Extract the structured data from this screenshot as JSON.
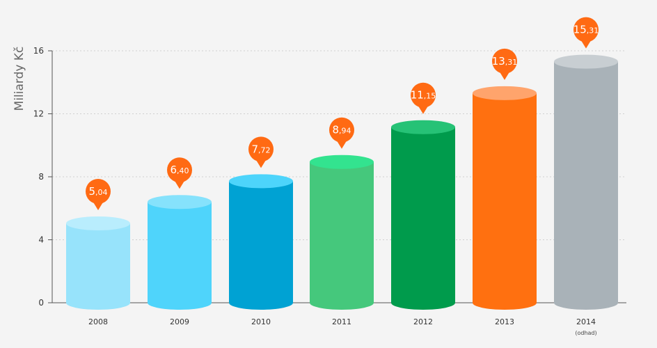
{
  "chart_data": {
    "type": "bar",
    "style": "cylinder",
    "ylabel": "Miliardy Kč",
    "ylim": [
      0,
      16
    ],
    "yticks": [
      0,
      4,
      8,
      12,
      16
    ],
    "grid": true,
    "categories": [
      "2008",
      "2009",
      "2010",
      "2011",
      "2012",
      "2013",
      "2014"
    ],
    "category_notes": [
      "",
      "",
      "",
      "",
      "",
      "",
      "(odhad)"
    ],
    "values": [
      5.04,
      6.4,
      7.72,
      8.94,
      11.15,
      13.31,
      15.31
    ],
    "value_labels": [
      {
        "int": "5",
        "dec": ",04"
      },
      {
        "int": "6",
        "dec": ",40"
      },
      {
        "int": "7",
        "dec": ",72"
      },
      {
        "int": "8",
        "dec": ",94"
      },
      {
        "int": "11",
        "dec": ",15"
      },
      {
        "int": "13",
        "dec": ",31"
      },
      {
        "int": "15",
        "dec": ",31"
      }
    ],
    "colors": [
      {
        "body": "#97e3fb",
        "top": "#b9edfd"
      },
      {
        "body": "#4fd4fb",
        "top": "#86e2fc"
      },
      {
        "body": "#00a2d3",
        "top": "#4dd4fb"
      },
      {
        "body": "#45c87c",
        "top": "#33e38f"
      },
      {
        "body": "#009b4c",
        "top": "#26c276"
      },
      {
        "body": "#ff7010",
        "top": "#ffa46c"
      },
      {
        "body": "#a9b2b8",
        "top": "#c8ced2"
      }
    ],
    "label_color": "#ff6a13"
  }
}
